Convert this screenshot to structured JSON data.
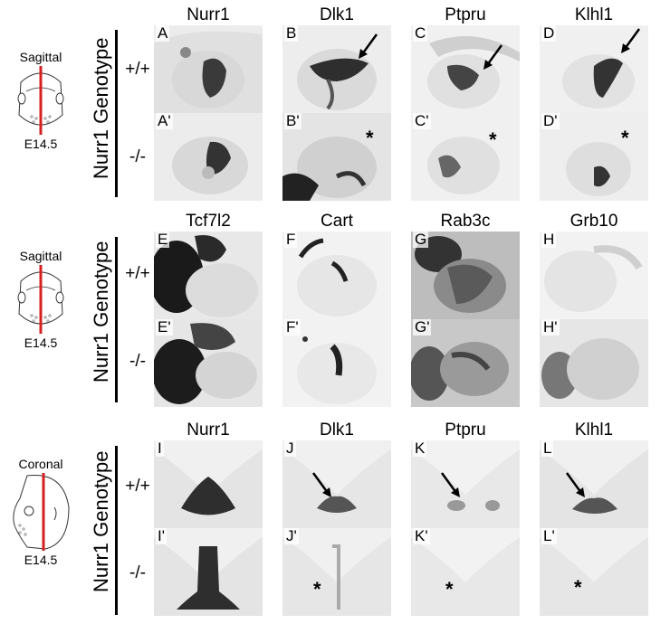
{
  "blocks": [
    {
      "plane": "Sagittal",
      "age": "E14.5",
      "genotype_title": "Nurr1 Genotype",
      "rows": [
        "+/+",
        "-/-"
      ],
      "genes": [
        "Nurr1",
        "Dlk1",
        "Ptpru",
        "Klhl1"
      ],
      "labels_top": [
        "A",
        "B",
        "C",
        "D"
      ],
      "labels_bottom": [
        "A'",
        "B'",
        "C'",
        "D'"
      ]
    },
    {
      "plane": "Sagittal",
      "age": "E14.5",
      "genotype_title": "Nurr1 Genotype",
      "rows": [
        "+/+",
        "-/-"
      ],
      "genes": [
        "Tcf7l2",
        "Cart",
        "Rab3c",
        "Grb10"
      ],
      "labels_top": [
        "E",
        "F",
        "G",
        "H"
      ],
      "labels_bottom": [
        "E'",
        "F'",
        "G'",
        "H'"
      ]
    },
    {
      "plane": "Coronal",
      "age": "E14.5",
      "genotype_title": "Nurr1 Genotype",
      "rows": [
        "+/+",
        "-/-"
      ],
      "genes": [
        "Nurr1",
        "Dlk1",
        "Ptpru",
        "Klhl1"
      ],
      "labels_top": [
        "I",
        "J",
        "K",
        "L"
      ],
      "labels_bottom": [
        "I'",
        "J'",
        "K'",
        "L'"
      ]
    }
  ],
  "markers": {
    "star": "*"
  },
  "colors": {
    "section_line": "#d42020",
    "stain": "#1a1a1a",
    "tissue": "#e6e6e6"
  },
  "icons": [
    "sagittal-head-diagram-icon",
    "coronal-head-diagram-icon",
    "arrow-icon"
  ]
}
